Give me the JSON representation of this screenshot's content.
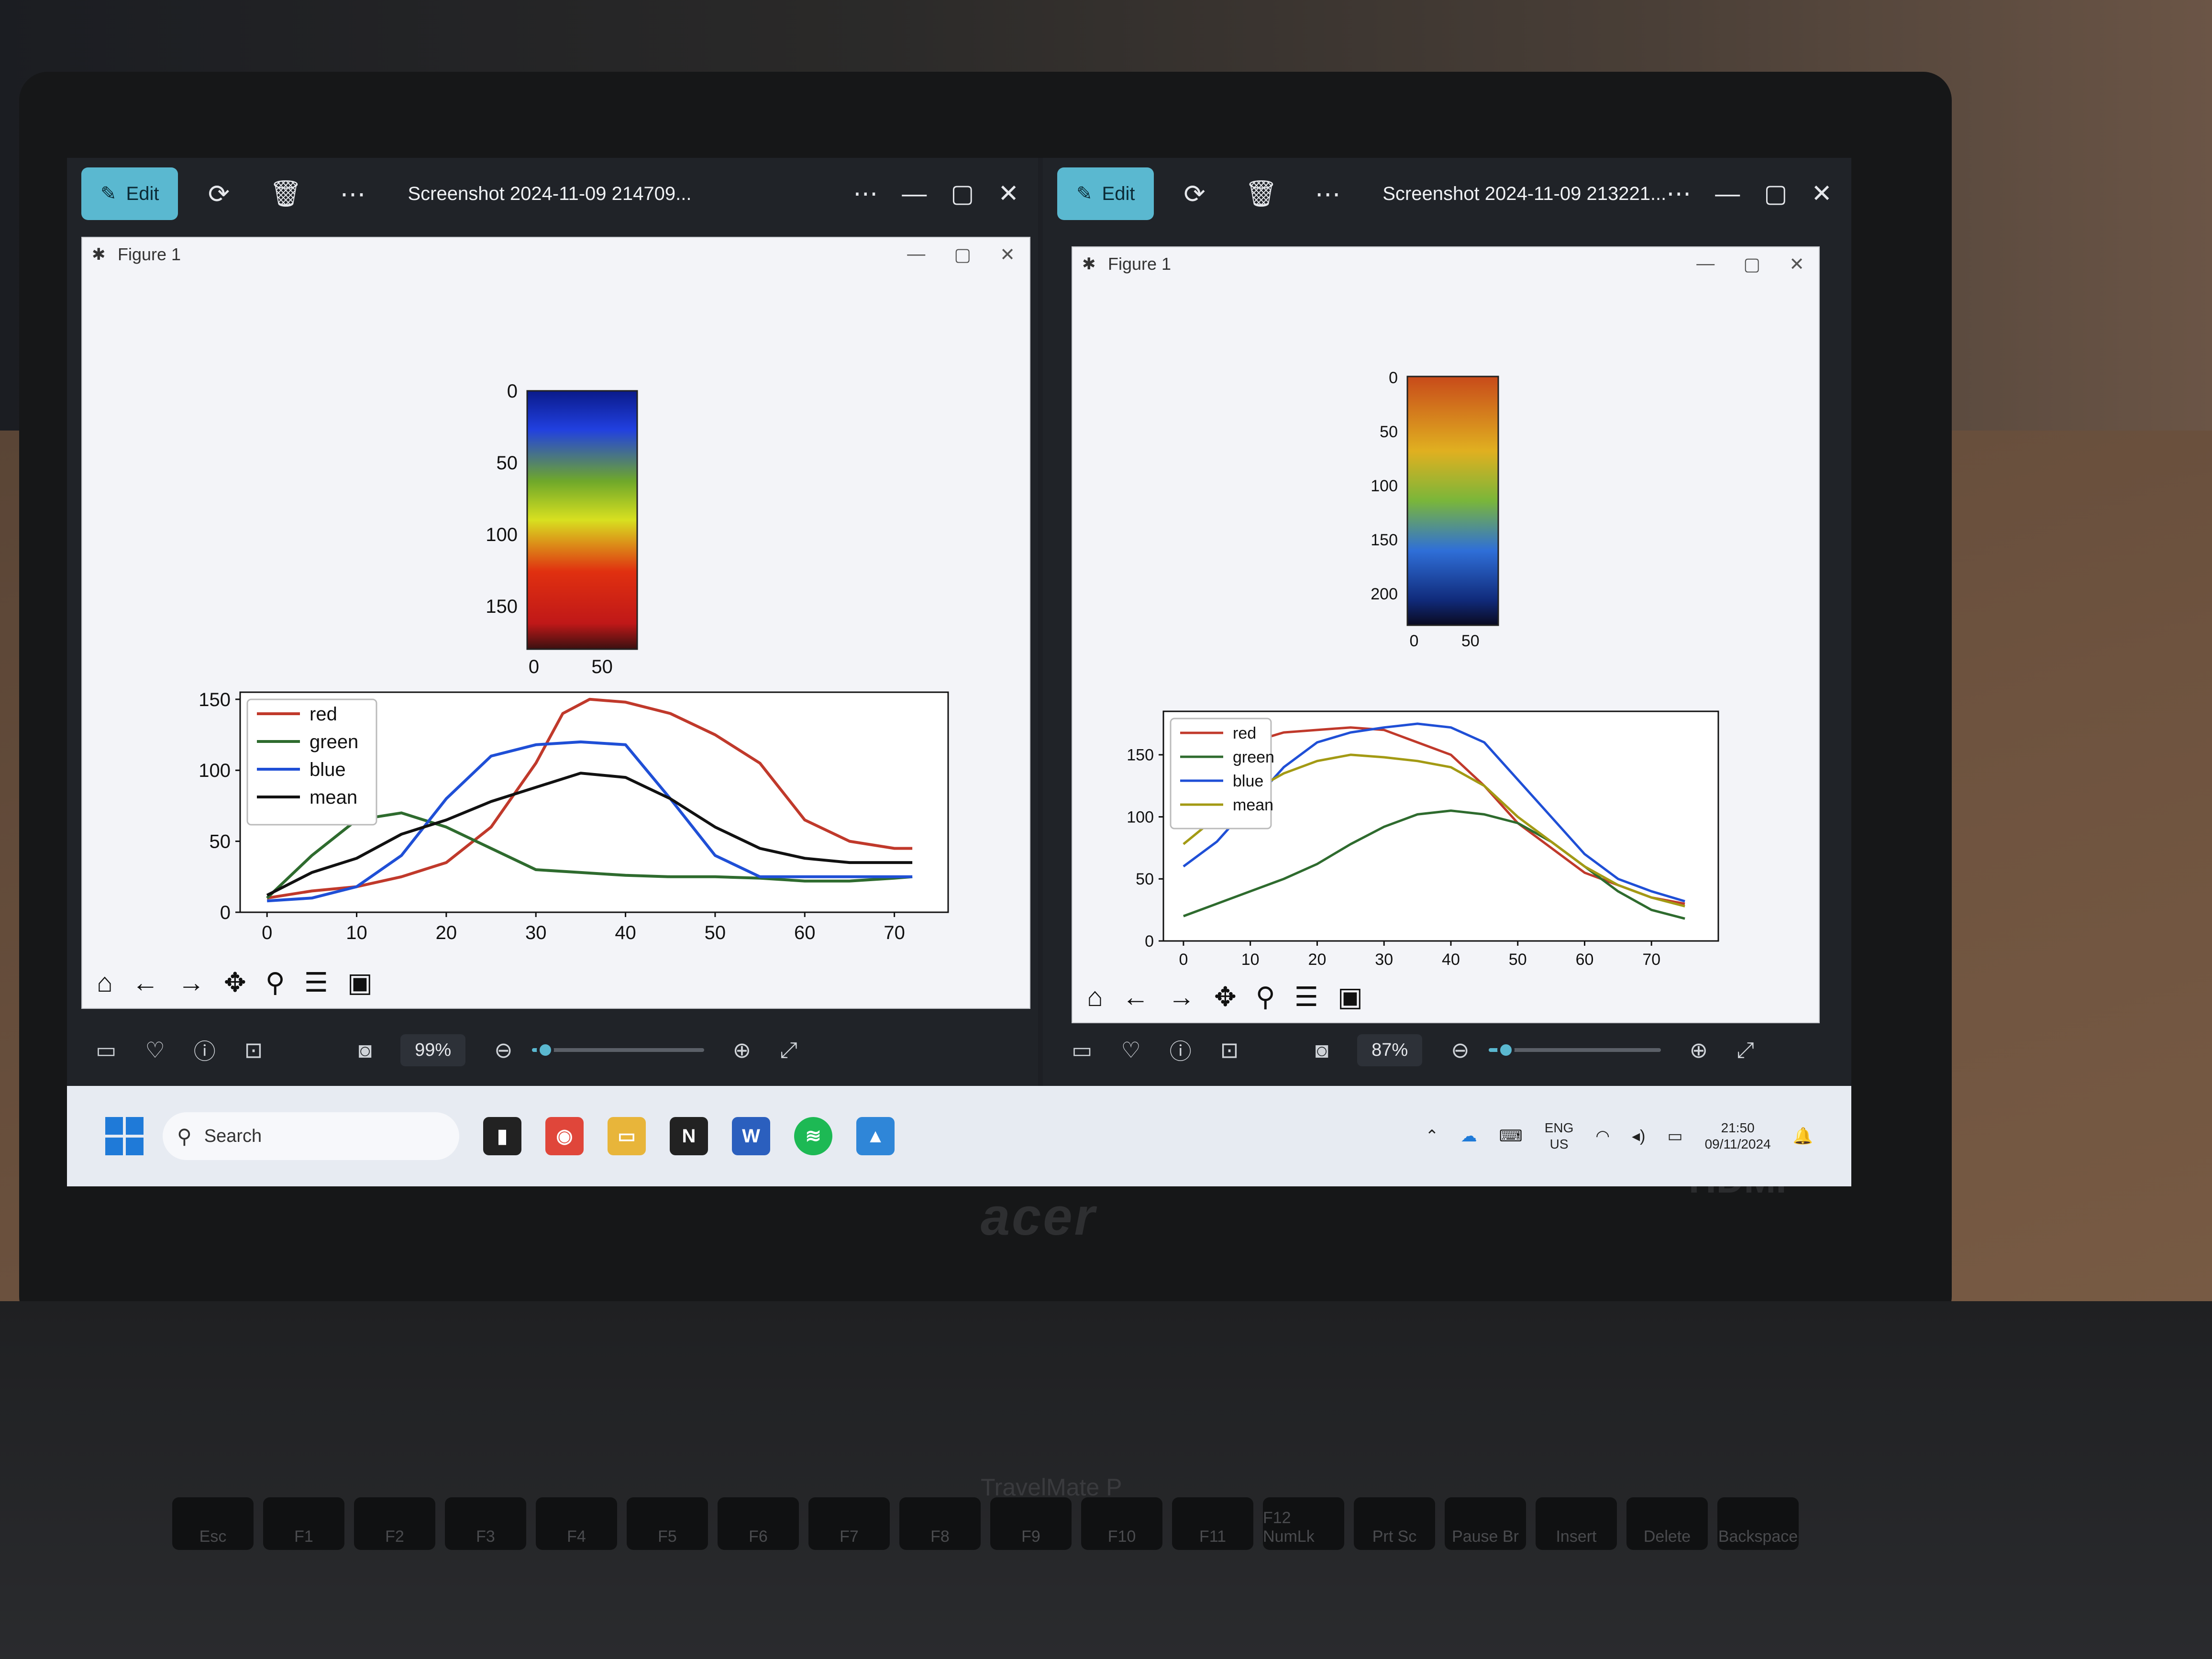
{
  "left_viewer": {
    "edit_label": "Edit",
    "title": "Screenshot 2024-11-09 214709...",
    "zoom": "99%",
    "zoom_fraction": 0.08,
    "figure": {
      "title": "Figure 1",
      "image_axis": {
        "y_ticks": [
          "0",
          "50",
          "100",
          "150"
        ],
        "x_ticks": [
          "0",
          "50"
        ]
      },
      "chart_data": {
        "type": "line",
        "x_ticks": [
          0,
          10,
          20,
          30,
          40,
          50,
          60,
          70
        ],
        "y_ticks": [
          0,
          50,
          100,
          150
        ],
        "xlim": [
          -3,
          76
        ],
        "ylim": [
          0,
          155
        ],
        "legend_position": "top-left",
        "series": [
          {
            "name": "red",
            "color": "#c0392b",
            "x": [
              0,
              5,
              10,
              15,
              20,
              25,
              30,
              33,
              36,
              40,
              45,
              50,
              55,
              60,
              65,
              70,
              72
            ],
            "y": [
              10,
              15,
              18,
              25,
              35,
              60,
              105,
              140,
              150,
              148,
              140,
              125,
              105,
              65,
              50,
              45,
              45
            ]
          },
          {
            "name": "green",
            "color": "#2e6b2e",
            "x": [
              0,
              5,
              10,
              15,
              20,
              25,
              30,
              35,
              40,
              45,
              50,
              55,
              60,
              65,
              70,
              72
            ],
            "y": [
              10,
              40,
              65,
              70,
              60,
              45,
              30,
              28,
              26,
              25,
              25,
              24,
              22,
              22,
              24,
              25
            ]
          },
          {
            "name": "blue",
            "color": "#1f4fd6",
            "x": [
              0,
              5,
              10,
              15,
              20,
              25,
              30,
              35,
              40,
              45,
              50,
              55,
              60,
              65,
              70,
              72
            ],
            "y": [
              8,
              10,
              18,
              40,
              80,
              110,
              118,
              120,
              118,
              80,
              40,
              25,
              25,
              25,
              25,
              25
            ]
          },
          {
            "name": "mean",
            "color": "#111111",
            "x": [
              0,
              5,
              10,
              15,
              20,
              25,
              30,
              35,
              40,
              45,
              50,
              55,
              60,
              65,
              70,
              72
            ],
            "y": [
              12,
              28,
              38,
              55,
              65,
              78,
              88,
              98,
              95,
              80,
              60,
              45,
              38,
              35,
              35,
              35
            ]
          }
        ]
      }
    }
  },
  "right_viewer": {
    "edit_label": "Edit",
    "title": "Screenshot 2024-11-09 213221...",
    "zoom": "87%",
    "zoom_fraction": 0.1,
    "figure": {
      "title": "Figure 1",
      "image_axis": {
        "y_ticks": [
          "0",
          "50",
          "100",
          "150",
          "200"
        ],
        "x_ticks": [
          "0",
          "50"
        ]
      },
      "chart_data": {
        "type": "line",
        "x_ticks": [
          0,
          10,
          20,
          30,
          40,
          50,
          60,
          70
        ],
        "y_ticks": [
          0,
          50,
          100,
          150
        ],
        "xlim": [
          -3,
          80
        ],
        "ylim": [
          0,
          185
        ],
        "legend_position": "top-left",
        "series": [
          {
            "name": "red",
            "color": "#c0392b",
            "x": [
              0,
              5,
              10,
              15,
              20,
              25,
              30,
              35,
              40,
              45,
              50,
              55,
              60,
              65,
              70,
              75
            ],
            "y": [
              100,
              130,
              160,
              168,
              170,
              172,
              170,
              160,
              150,
              125,
              95,
              75,
              55,
              45,
              35,
              30
            ]
          },
          {
            "name": "green",
            "color": "#2e6b2e",
            "x": [
              0,
              5,
              10,
              15,
              20,
              25,
              30,
              35,
              40,
              45,
              50,
              55,
              60,
              65,
              70,
              75
            ],
            "y": [
              20,
              30,
              40,
              50,
              62,
              78,
              92,
              102,
              105,
              102,
              95,
              80,
              60,
              40,
              25,
              18
            ]
          },
          {
            "name": "blue",
            "color": "#1f4fd6",
            "x": [
              0,
              5,
              10,
              15,
              20,
              25,
              30,
              35,
              40,
              45,
              50,
              55,
              60,
              65,
              70,
              75
            ],
            "y": [
              60,
              80,
              110,
              140,
              160,
              168,
              172,
              175,
              172,
              160,
              130,
              100,
              70,
              50,
              40,
              32
            ]
          },
          {
            "name": "mean",
            "color": "#a39a14",
            "x": [
              0,
              5,
              10,
              15,
              20,
              25,
              30,
              35,
              40,
              45,
              50,
              55,
              60,
              65,
              70,
              75
            ],
            "y": [
              78,
              100,
              120,
              135,
              145,
              150,
              148,
              145,
              140,
              125,
              100,
              80,
              60,
              45,
              35,
              28
            ]
          }
        ]
      }
    }
  },
  "taskbar": {
    "search_placeholder": "Search",
    "language_top": "ENG",
    "language_bottom": "US",
    "time": "21:50",
    "date": "09/11/2024"
  },
  "laptop": {
    "brand": "acer",
    "port_label": "HDMI",
    "model": "TravelMate P",
    "keys": [
      "Esc",
      "F1",
      "F2",
      "F3",
      "F4",
      "F5",
      "F6",
      "F7",
      "F8",
      "F9",
      "F10",
      "F11",
      "F12 NumLk",
      "Prt Sc",
      "Pause Br",
      "Insert",
      "Delete",
      "Backspace"
    ]
  },
  "icons": {
    "edit": "edit-image-icon",
    "rotate": "rotate-icon",
    "delete": "trash-icon",
    "more": "more-icon",
    "home": "home-icon",
    "pan": "pan-icon",
    "zoom_tool": "magnifier-icon",
    "configure": "sliders-icon",
    "save": "save-icon"
  }
}
